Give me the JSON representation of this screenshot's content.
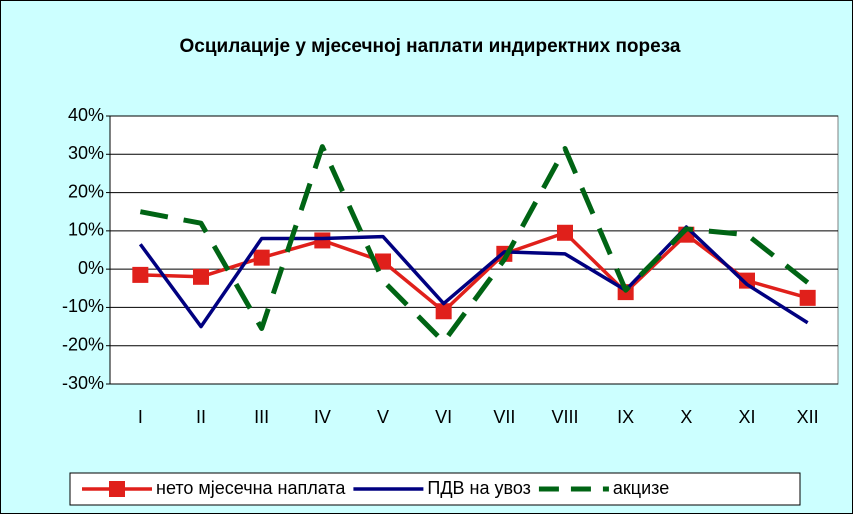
{
  "chart_data": {
    "type": "line",
    "title": "Осцилације у мјесечној наплати индиректних пореза",
    "categories": [
      "I",
      "II",
      "III",
      "IV",
      "V",
      "VI",
      "VII",
      "VIII",
      "IX",
      "X",
      "XI",
      "XII"
    ],
    "series": [
      {
        "name": "нето мјесечна наплата",
        "color": "#e0201b",
        "marker": "square",
        "dash": "solid",
        "values": [
          -1.5,
          -2,
          3,
          7.5,
          2,
          -11,
          4,
          9.5,
          -6,
          9,
          -3,
          -7.5
        ]
      },
      {
        "name": "ПДВ на увоз",
        "color": "#000080",
        "marker": "none",
        "dash": "solid",
        "values": [
          6.5,
          -15,
          8,
          8,
          8.5,
          -9,
          4.5,
          4,
          -5.5,
          11,
          -4,
          -14
        ]
      },
      {
        "name": "акцизе",
        "color": "#006414",
        "marker": "none",
        "dash": "dashed",
        "values": [
          15,
          12,
          -15.5,
          32,
          -3,
          -19,
          2.5,
          31.5,
          -5.5,
          10.5,
          9,
          -3.5
        ]
      }
    ],
    "ylim": [
      -30,
      40
    ],
    "yticks": [
      {
        "value": -30,
        "label": "-30%"
      },
      {
        "value": -20,
        "label": "-20%"
      },
      {
        "value": -10,
        "label": "-10%"
      },
      {
        "value": 0,
        "label": "0%"
      },
      {
        "value": 10,
        "label": "10%"
      },
      {
        "value": 20,
        "label": "20%"
      },
      {
        "value": 30,
        "label": "30%"
      },
      {
        "value": 40,
        "label": "40%"
      }
    ],
    "grid": true,
    "legend": "bottom"
  }
}
